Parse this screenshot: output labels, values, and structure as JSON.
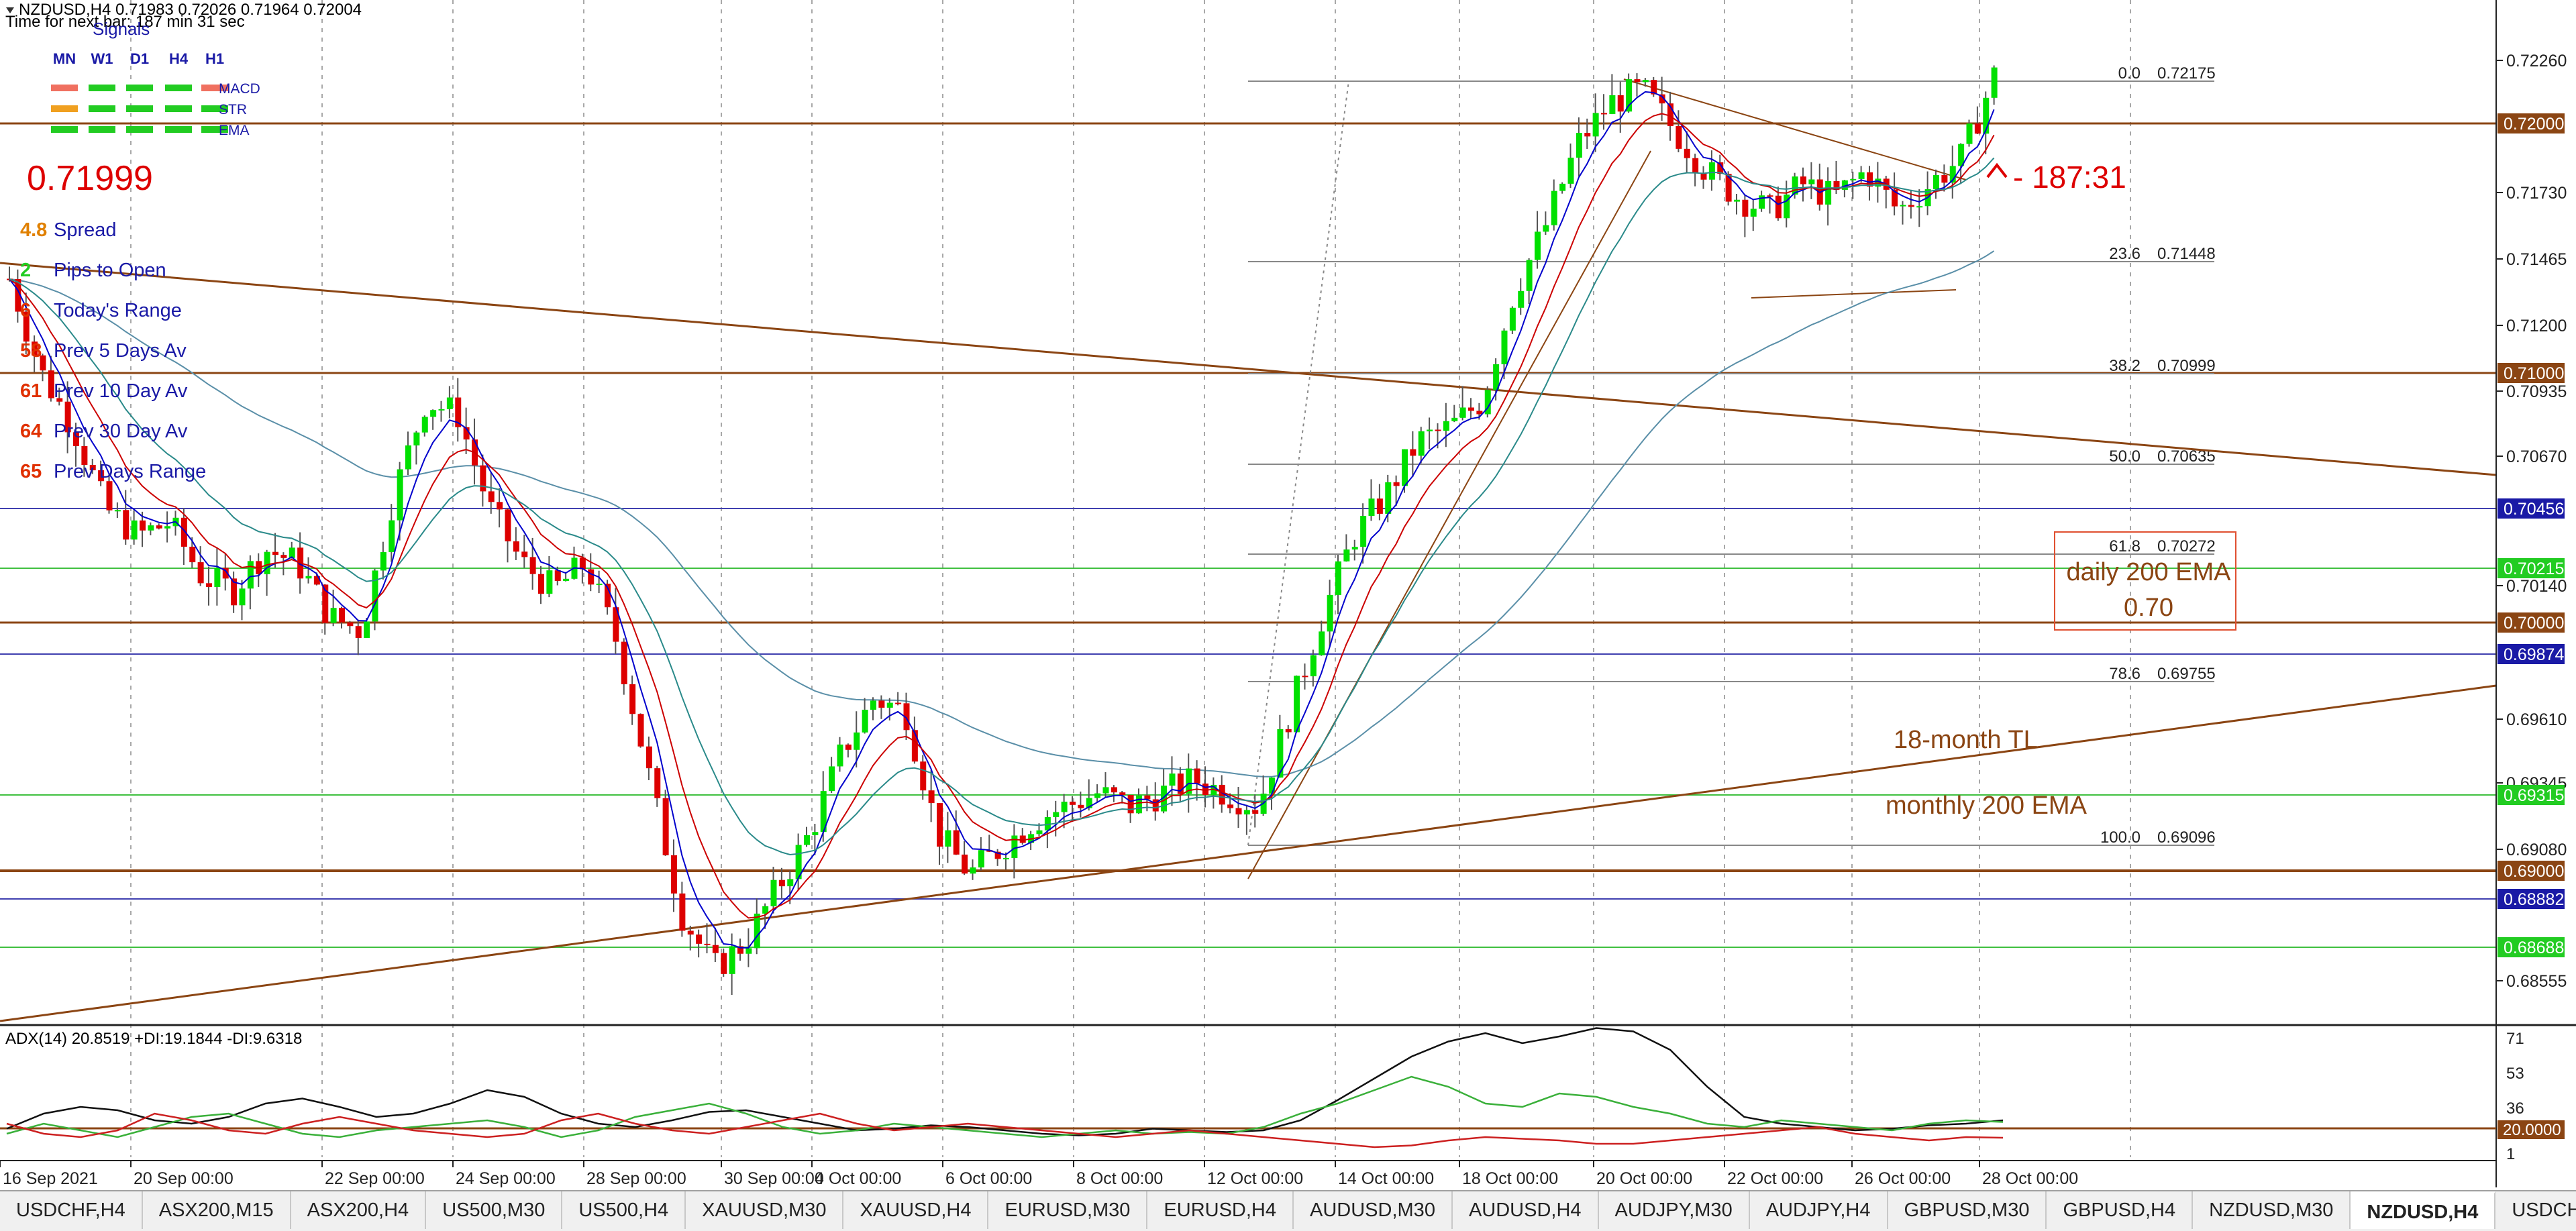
{
  "header": {
    "symbol_line": "NZDUSD,H4  0.71983 0.72026 0.71964 0.72004",
    "timer_line": "Time for next bar: 187 min 31 sec",
    "signals_title": "Signals"
  },
  "signals": {
    "timeframes": [
      "MN",
      "W1",
      "D1",
      "H4",
      "H1"
    ],
    "rows": [
      {
        "label": "MACD",
        "colors": [
          "#f07060",
          "#22cc22",
          "#22cc22",
          "#22cc22",
          "#f07060"
        ]
      },
      {
        "label": "STR",
        "colors": [
          "#f0a020",
          "#22cc22",
          "#22cc22",
          "#22cc22",
          "#22cc22"
        ]
      },
      {
        "label": "EMA",
        "colors": [
          "#22cc22",
          "#22cc22",
          "#22cc22",
          "#22cc22",
          "#22cc22"
        ]
      }
    ]
  },
  "info": {
    "price": "0.71999",
    "rows": [
      {
        "value": "4.8",
        "label": "Spread",
        "color": "#e08000"
      },
      {
        "value": "2",
        "label": "Pips to Open",
        "color": "#22cc22"
      },
      {
        "value": "6",
        "label": "Today's Range",
        "color": "#e03000"
      },
      {
        "value": "58",
        "label": "Prev 5 Days Av",
        "color": "#e03000"
      },
      {
        "value": "61",
        "label": "Prev 10 Day Av",
        "color": "#e03000"
      },
      {
        "value": "64",
        "label": "Prev 30 Day Av",
        "color": "#e03000"
      },
      {
        "value": "65",
        "label": "Prev Days Range",
        "color": "#e03000"
      }
    ]
  },
  "annotations": {
    "countdown": "- 187:31",
    "daily_ema_line1": "daily 200 EMA",
    "daily_ema_line2": "0.70",
    "tl_label": "18-month TL",
    "monthly_ema_label": "monthly 200 EMA"
  },
  "fib_levels": [
    {
      "ratio": "0.0",
      "price": "0.72175"
    },
    {
      "ratio": "23.6",
      "price": "0.71448"
    },
    {
      "ratio": "38.2",
      "price": "0.70999"
    },
    {
      "ratio": "50.0",
      "price": "0.70635"
    },
    {
      "ratio": "61.8",
      "price": "0.70272"
    },
    {
      "ratio": "78.6",
      "price": "0.69755"
    },
    {
      "ratio": "100.0",
      "price": "0.69096"
    }
  ],
  "price_axis": {
    "ticks": [
      "0.72260",
      "0.71730",
      "0.71465",
      "0.71200",
      "0.70935",
      "0.70670",
      "0.70140",
      "0.69610",
      "0.69345",
      "0.69080",
      "0.68555"
    ],
    "boxes": [
      {
        "text": "0.72000",
        "bg": "#8b4513",
        "fg": "#ffffff"
      },
      {
        "text": "0.71000",
        "bg": "#8b4513",
        "fg": "#ffffff"
      },
      {
        "text": "0.70456",
        "bg": "#1a1aa6",
        "fg": "#ffffff"
      },
      {
        "text": "0.70215",
        "bg": "#22cc22",
        "fg": "#ffffff"
      },
      {
        "text": "0.70000",
        "bg": "#8b4513",
        "fg": "#ffffff"
      },
      {
        "text": "0.69874",
        "bg": "#1a1aa6",
        "fg": "#ffffff"
      },
      {
        "text": "0.69315",
        "bg": "#22cc22",
        "fg": "#ffffff"
      },
      {
        "text": "0.69000",
        "bg": "#8b4513",
        "fg": "#ffffff"
      },
      {
        "text": "0.68882",
        "bg": "#1a1aa6",
        "fg": "#ffffff"
      },
      {
        "text": "0.68688",
        "bg": "#22cc22",
        "fg": "#ffffff"
      }
    ]
  },
  "adx": {
    "title": "ADX(14) 20.8519 +DI:19.1844 -DI:9.6318",
    "axis_ticks": [
      "71",
      "53",
      "36",
      "1"
    ],
    "level_box": "20.0000"
  },
  "time_axis": [
    "16 Sep 2021",
    "20 Sep 00:00",
    "22 Sep 00:00",
    "24 Sep 00:00",
    "28 Sep 00:00",
    "30 Sep 00:00",
    "4 Oct 00:00",
    "6 Oct 00:00",
    "8 Oct 00:00",
    "12 Oct 00:00",
    "14 Oct 00:00",
    "18 Oct 00:00",
    "20 Oct 00:00",
    "22 Oct 00:00",
    "26 Oct 00:00",
    "28 Oct 00:00"
  ],
  "tabs": [
    "USDCHF,H4",
    "ASX200,M15",
    "ASX200,H4",
    "US500,M30",
    "US500,H4",
    "XAUUSD,M30",
    "XAUUSD,H4",
    "EURUSD,M30",
    "EURUSD,H4",
    "AUDUSD,M30",
    "AUDUSD,H4",
    "AUDJPY,M30",
    "AUDJPY,H4",
    "GBPUSD,M30",
    "GBPUSD,H4",
    "NZDUSD,M30",
    "NZDUSD,H4",
    "USDCHF"
  ],
  "active_tab": 16,
  "colors": {
    "bull": "#00e000",
    "bear": "#dd0000",
    "ema_fast": "#0000cc",
    "ema_mid": "#cc0000",
    "ema_slow": "#2a8a8a",
    "ema_200": "#5a8fa8",
    "trendline": "#8b4513"
  },
  "chart_data": {
    "type": "candlestick",
    "symbol": "NZDUSD,H4",
    "ylim": [
      0.685,
      0.7228
    ],
    "x_labels": [
      "16 Sep 2021",
      "20 Sep 00:00",
      "22 Sep 00:00",
      "24 Sep 00:00",
      "28 Sep 00:00",
      "30 Sep 00:00",
      "4 Oct 00:00",
      "6 Oct 00:00",
      "8 Oct 00:00",
      "12 Oct 00:00",
      "14 Oct 00:00",
      "18 Oct 00:00",
      "20 Oct 00:00",
      "22 Oct 00:00",
      "26 Oct 00:00",
      "28 Oct 00:00"
    ],
    "close_path": [
      0.7125,
      0.709,
      0.707,
      0.704,
      0.703,
      0.7035,
      0.7015,
      0.701,
      0.7025,
      0.702,
      0.7,
      0.6995,
      0.7045,
      0.708,
      0.7075,
      0.704,
      0.702,
      0.701,
      0.702,
      0.699,
      0.694,
      0.689,
      0.687,
      0.688,
      0.69,
      0.692,
      0.695,
      0.697,
      0.6965,
      0.692,
      0.6905,
      0.6915,
      0.6925,
      0.693,
      0.6935,
      0.693,
      0.6935,
      0.694,
      0.6935,
      0.693,
      0.6965,
      0.7,
      0.703,
      0.7045,
      0.7065,
      0.707,
      0.708,
      0.712,
      0.7145,
      0.7175,
      0.719,
      0.7195,
      0.718,
      0.7165,
      0.7155,
      0.715,
      0.716,
      0.7155,
      0.7165,
      0.715,
      0.716,
      0.717,
      0.72
    ],
    "horizontal_levels": [
      0.72,
      0.71,
      0.70456,
      0.70215,
      0.7,
      0.69874,
      0.69315,
      0.69,
      0.68882,
      0.68688
    ],
    "fibonacci": [
      [
        0.0,
        0.72175
      ],
      [
        23.6,
        0.71448
      ],
      [
        38.2,
        0.70999
      ],
      [
        50.0,
        0.70635
      ],
      [
        61.8,
        0.70272
      ],
      [
        78.6,
        0.69755
      ],
      [
        100.0,
        0.69096
      ]
    ],
    "last_price": 0.71999
  }
}
